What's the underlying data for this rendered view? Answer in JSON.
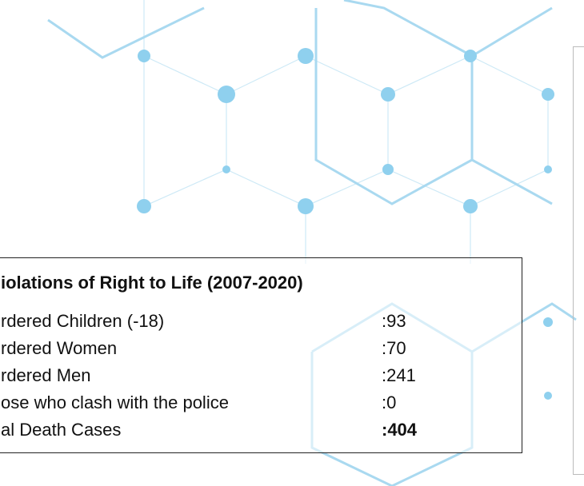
{
  "table": {
    "title": "iolations of Right to Life (2007-2020)",
    "rows": [
      [
        "rdered Children (-18)",
        ":93"
      ],
      [
        "rdered Women",
        ":70"
      ],
      [
        "rdered Men",
        ":241"
      ],
      [
        "ose who clash with the police",
        ":0"
      ],
      [
        "al Death Cases",
        ":404"
      ]
    ]
  }
}
